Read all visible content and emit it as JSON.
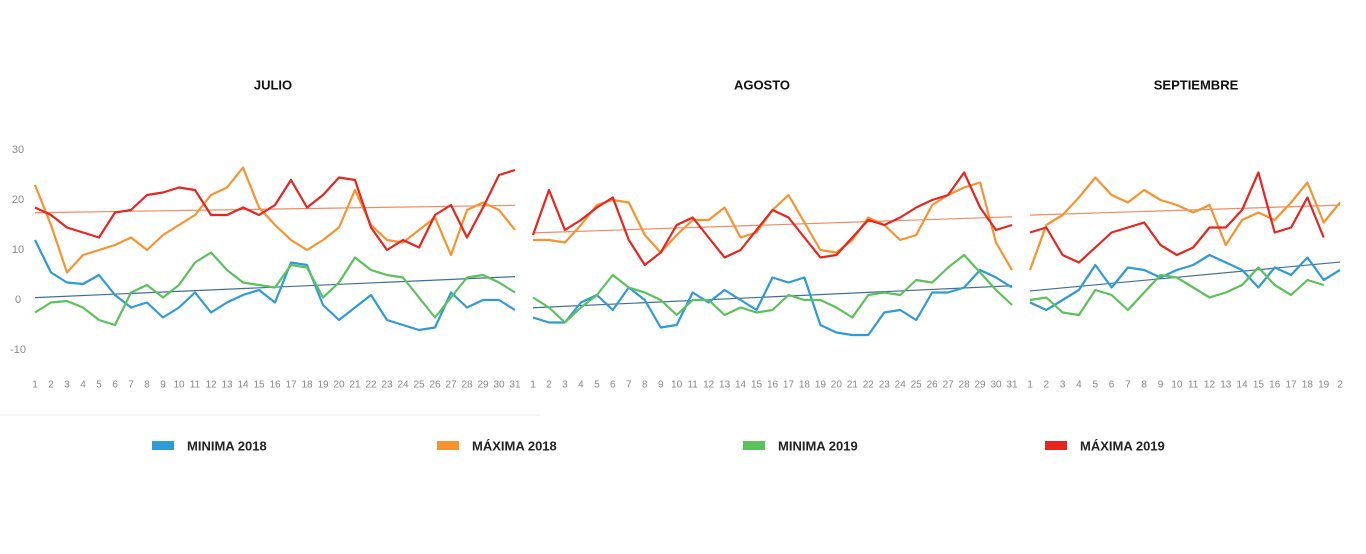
{
  "chart_data": [
    {
      "type": "line",
      "title": "JULIO",
      "categories": [
        "1",
        "2",
        "3",
        "4",
        "5",
        "6",
        "7",
        "8",
        "9",
        "10",
        "11",
        "12",
        "13",
        "14",
        "15",
        "16",
        "17",
        "18",
        "19",
        "20",
        "21",
        "22",
        "23",
        "24",
        "25",
        "26",
        "27",
        "28",
        "29",
        "30",
        "31"
      ],
      "ylim": [
        -14,
        33
      ],
      "yticks": [
        -10,
        0,
        10,
        20,
        30
      ],
      "trendlines": [
        {
          "series": 2,
          "color": "#3f6f94"
        },
        {
          "series": 3,
          "color": "#f28a63"
        }
      ],
      "series": [
        {
          "name": "MINIMA 2018",
          "color": "#2e9ad6",
          "values": [
            12,
            5.5,
            3.5,
            3.2,
            5,
            1,
            -1.5,
            -0.5,
            -3.5,
            -1.5,
            1.5,
            -2.5,
            -0.5,
            1,
            2,
            -0.5,
            7.5,
            7,
            -1,
            -4,
            -1.5,
            1,
            -4,
            -5,
            -6,
            -5.5,
            1.5,
            -1.5,
            0,
            0,
            -2
          ]
        },
        {
          "name": "MÁXIMA 2018",
          "color": "#f7932f",
          "values": [
            23,
            15,
            5.5,
            9,
            10,
            11,
            12.5,
            10,
            13,
            15,
            17,
            21,
            22.5,
            26.5,
            18.5,
            15,
            12,
            10,
            12,
            14.5,
            22,
            15,
            12,
            11.5,
            14,
            16.5,
            9,
            18,
            19.5,
            18,
            14
          ]
        },
        {
          "name": "MINIMA 2019",
          "color": "#5cc15a",
          "values": [
            -2.5,
            -0.5,
            -0.2,
            -1.5,
            -4,
            -5,
            1.5,
            3,
            0.5,
            3,
            7.5,
            9.5,
            6,
            3.5,
            3,
            2.5,
            7,
            6.5,
            0.5,
            3.5,
            8.5,
            6,
            5,
            4.5,
            0.5,
            -3.5,
            0.5,
            4.5,
            5,
            3.5,
            1.5
          ]
        },
        {
          "name": "MÁXIMA 2019",
          "color": "#e8241f",
          "values": [
            18.5,
            17,
            14.5,
            13.5,
            12.5,
            17.5,
            18,
            21,
            21.5,
            22.5,
            22,
            17,
            17,
            18.5,
            17,
            19,
            24,
            18.5,
            21,
            24.5,
            24,
            14.5,
            10,
            12,
            10.5,
            17,
            19,
            12.5,
            18.5,
            25,
            26
          ]
        }
      ]
    },
    {
      "type": "line",
      "title": "AGOSTO",
      "categories": [
        "1",
        "2",
        "3",
        "4",
        "5",
        "6",
        "7",
        "8",
        "9",
        "10",
        "11",
        "12",
        "13",
        "14",
        "15",
        "16",
        "17",
        "18",
        "19",
        "20",
        "21",
        "22",
        "23",
        "24",
        "25",
        "26",
        "27",
        "28",
        "29",
        "30",
        "31"
      ],
      "ylim": [
        -14,
        33
      ],
      "trendlines": [
        {
          "series": 2,
          "color": "#3f6f94"
        },
        {
          "series": 3,
          "color": "#f28a63"
        }
      ],
      "series": [
        {
          "name": "MINIMA 2018",
          "color": "#2e9ad6",
          "values": [
            -3.5,
            -4.5,
            -4.5,
            -0.5,
            1,
            -2,
            2.5,
            0,
            -5.5,
            -5,
            1.5,
            -0.5,
            2,
            0,
            -2,
            4.5,
            3.5,
            4.5,
            -5,
            -6.5,
            -7,
            -7,
            -2.5,
            -2,
            -4,
            1.5,
            1.5,
            2.5,
            6,
            4.5,
            2.5
          ]
        },
        {
          "name": "MÁXIMA 2018",
          "color": "#f7932f",
          "values": [
            12,
            12,
            11.5,
            15,
            19,
            20,
            19.5,
            13,
            9.5,
            13,
            16,
            16,
            18.5,
            12.5,
            13.5,
            18,
            21,
            15.5,
            10,
            9.5,
            12,
            16.5,
            15,
            12,
            13,
            19,
            21,
            22.5,
            23.5,
            11.5,
            6
          ]
        },
        {
          "name": "MINIMA 2019",
          "color": "#5cc15a",
          "values": [
            0.5,
            -1.5,
            -4.5,
            -1.5,
            1,
            5,
            2.5,
            1.5,
            0,
            -3,
            0,
            0,
            -3,
            -1.5,
            -2.5,
            -2,
            1,
            0,
            0,
            -1.5,
            -3.5,
            1,
            1.5,
            1,
            4,
            3.5,
            6.5,
            9,
            5.5,
            2,
            -1
          ]
        },
        {
          "name": "MÁXIMA 2019",
          "color": "#e8241f",
          "values": [
            13,
            22,
            14,
            16,
            18.5,
            20.5,
            12,
            7,
            9.5,
            15,
            16.5,
            12.5,
            8.5,
            10,
            14,
            18,
            16.5,
            12.5,
            8.5,
            9,
            12.5,
            16,
            15,
            16.5,
            18.5,
            20,
            21,
            25.5,
            18.5,
            14,
            15
          ]
        }
      ]
    },
    {
      "type": "line",
      "title": "SEPTIEMBRE",
      "categories": [
        "1",
        "2",
        "3",
        "4",
        "5",
        "6",
        "7",
        "8",
        "9",
        "10",
        "11",
        "12",
        "13",
        "14",
        "15",
        "16",
        "17",
        "18",
        "19",
        "2"
      ],
      "ylim": [
        -14,
        33
      ],
      "trendlines": [
        {
          "series": 0,
          "color": "#3f6f94"
        },
        {
          "series": 1,
          "color": "#f28a63"
        }
      ],
      "series": [
        {
          "name": "MINIMA 2018",
          "color": "#2e9ad6",
          "values": [
            -0.5,
            -2,
            0,
            2,
            7,
            2.5,
            6.5,
            6,
            4.5,
            6,
            7,
            9,
            7.5,
            6,
            2.5,
            6.5,
            5,
            8.5,
            4,
            6
          ]
        },
        {
          "name": "MÁXIMA 2018",
          "color": "#f7932f",
          "values": [
            6,
            15,
            17,
            20.5,
            24.5,
            21,
            19.5,
            22,
            20,
            19,
            17.5,
            19,
            11,
            16,
            17.5,
            16,
            19.5,
            23.5,
            15.5,
            19.5
          ]
        },
        {
          "name": "MINIMA 2019",
          "color": "#5cc15a",
          "values": [
            0,
            0.5,
            -2.5,
            -3,
            2,
            1,
            -2,
            1.5,
            5,
            4.5,
            2.5,
            0.5,
            1.5,
            3,
            6.5,
            3,
            1,
            4,
            3,
            null
          ]
        },
        {
          "name": "MÁXIMA 2019",
          "color": "#e8241f",
          "values": [
            13.5,
            14.5,
            9,
            7.5,
            10.5,
            13.5,
            14.5,
            15.5,
            11,
            9,
            10.5,
            14.5,
            14.5,
            18,
            25.5,
            13.5,
            14.5,
            20.5,
            12.5,
            null
          ]
        }
      ]
    }
  ]
}
